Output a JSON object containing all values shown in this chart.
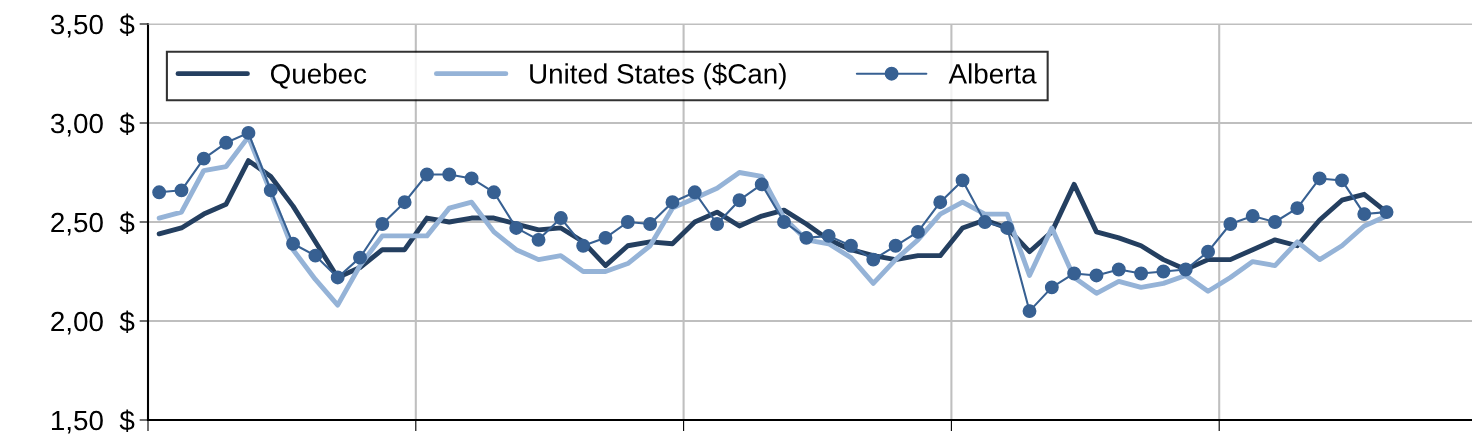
{
  "chart_data": {
    "type": "line",
    "categories": [
      null,
      null,
      null,
      null,
      null,
      null,
      null,
      null,
      null,
      null,
      null,
      null,
      null,
      null,
      null,
      null,
      null,
      null,
      null,
      null,
      null,
      null,
      null,
      null,
      null,
      null,
      null,
      null,
      null,
      null,
      null,
      null,
      null,
      null,
      null,
      null,
      null,
      null,
      null,
      null,
      null,
      null,
      null,
      null,
      null,
      null,
      null,
      null,
      null,
      null,
      null,
      null,
      null,
      null,
      null,
      null,
      null,
      null,
      null,
      null
    ],
    "series": [
      {
        "name": "Quebec",
        "color": "#243f60",
        "marker": "none",
        "values": [
          2.44,
          2.47,
          2.54,
          2.59,
          2.81,
          2.73,
          2.58,
          2.4,
          2.22,
          2.27,
          2.36,
          2.36,
          2.52,
          2.5,
          2.52,
          2.52,
          2.49,
          2.46,
          2.47,
          2.4,
          2.28,
          2.38,
          2.4,
          2.39,
          2.5,
          2.55,
          2.48,
          2.53,
          2.56,
          2.49,
          2.41,
          2.36,
          2.33,
          2.31,
          2.33,
          2.33,
          2.47,
          2.51,
          2.47,
          2.35,
          2.45,
          2.69,
          2.45,
          2.42,
          2.38,
          2.31,
          2.26,
          2.31,
          2.31,
          2.36,
          2.41,
          2.38,
          2.51,
          2.61,
          2.64,
          2.55,
          null,
          null,
          null,
          null
        ]
      },
      {
        "name": "United States ($Can)",
        "color": "#95b3d7",
        "marker": "none",
        "values": [
          2.52,
          2.55,
          2.76,
          2.78,
          2.93,
          2.65,
          2.36,
          2.21,
          2.08,
          2.28,
          2.43,
          2.43,
          2.43,
          2.57,
          2.6,
          2.45,
          2.36,
          2.31,
          2.33,
          2.25,
          2.25,
          2.29,
          2.38,
          2.57,
          2.62,
          2.67,
          2.75,
          2.73,
          2.52,
          2.41,
          2.39,
          2.32,
          2.19,
          2.31,
          2.41,
          2.54,
          2.6,
          2.54,
          2.54,
          2.23,
          2.47,
          2.22,
          2.14,
          2.2,
          2.17,
          2.19,
          2.23,
          2.15,
          2.22,
          2.3,
          2.28,
          2.4,
          2.31,
          2.38,
          2.48,
          2.53,
          null,
          null,
          null,
          null
        ]
      },
      {
        "name": "Alberta",
        "color": "#376092",
        "marker": "circle",
        "values": [
          2.65,
          2.66,
          2.82,
          2.9,
          2.95,
          2.66,
          2.39,
          2.33,
          2.22,
          2.32,
          2.49,
          2.6,
          2.74,
          2.74,
          2.72,
          2.65,
          2.47,
          2.41,
          2.52,
          2.38,
          2.42,
          2.5,
          2.49,
          2.6,
          2.65,
          2.49,
          2.61,
          2.69,
          2.5,
          2.42,
          2.43,
          2.38,
          2.31,
          2.38,
          2.45,
          2.6,
          2.71,
          2.5,
          2.47,
          2.05,
          2.17,
          2.24,
          2.23,
          2.26,
          2.24,
          2.25,
          2.26,
          2.35,
          2.49,
          2.53,
          2.5,
          2.57,
          2.72,
          2.71,
          2.54,
          2.55,
          null,
          null,
          null,
          null
        ]
      }
    ],
    "ylim": [
      1.5,
      3.5
    ],
    "yticks": [
      {
        "value": 1.5,
        "label": "1,50  $"
      },
      {
        "value": 2.0,
        "label": "2,00  $"
      },
      {
        "value": 2.5,
        "label": "2,50  $"
      },
      {
        "value": 3.0,
        "label": "3,00  $"
      },
      {
        "value": 3.5,
        "label": "3,50  $"
      }
    ],
    "grid": true,
    "legend": "top",
    "tick_labels": "y",
    "line_style": "solid"
  }
}
